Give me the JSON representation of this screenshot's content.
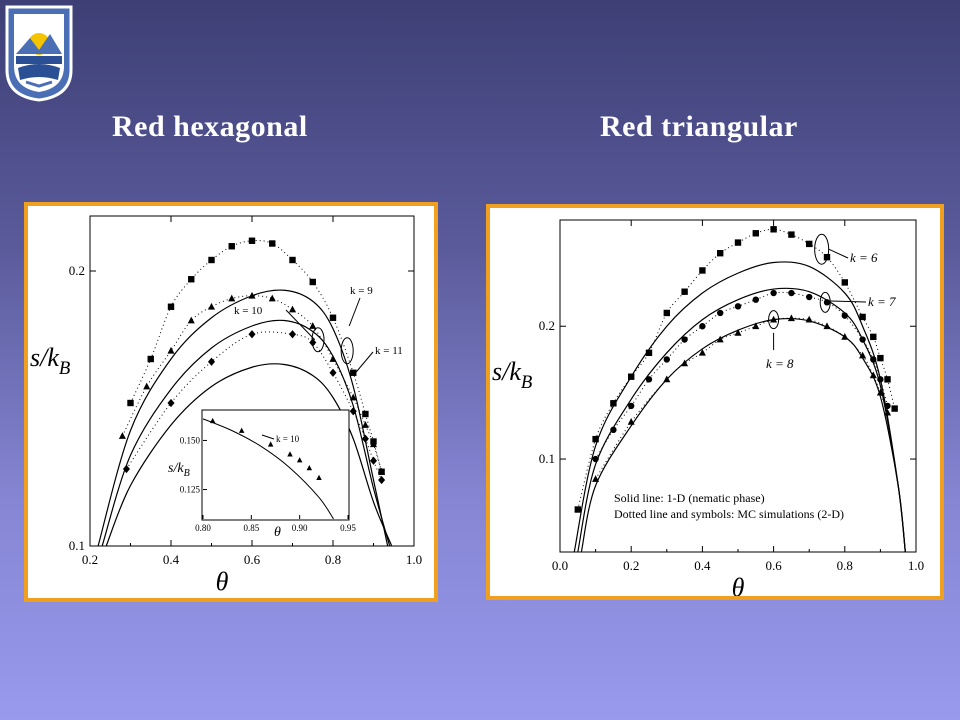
{
  "page": {
    "heading_left": "Red hexagonal",
    "heading_right": "Red triangular"
  },
  "logo": {
    "icon": "university-shield-icon",
    "colors": [
      "#4a6fb5",
      "#ffffff",
      "#f5c400",
      "#2a4f95"
    ]
  },
  "chart_data": [
    {
      "type": "scatter",
      "title": "",
      "xlabel": "θ",
      "ylabel": "s/k_B",
      "xlim": [
        0.2,
        1.0
      ],
      "ylim": [
        0.1,
        0.22
      ],
      "x_ticks": [
        "0.2",
        "0.4",
        "0.6",
        "0.8",
        "1.0"
      ],
      "y_ticks": [
        "0.1",
        "0.2"
      ],
      "annotations": [
        "k = 9",
        "k = 10",
        "k = 11"
      ],
      "series": [
        {
          "name": "k = 9",
          "marker": "square",
          "line": "dotted",
          "x": [
            0.3,
            0.35,
            0.4,
            0.45,
            0.5,
            0.55,
            0.6,
            0.65,
            0.7,
            0.75,
            0.8,
            0.85,
            0.88,
            0.9,
            0.92
          ],
          "y": [
            0.152,
            0.168,
            0.187,
            0.197,
            0.204,
            0.209,
            0.211,
            0.21,
            0.204,
            0.196,
            0.183,
            0.163,
            0.148,
            0.138,
            0.127
          ]
        },
        {
          "name": "k = 10",
          "marker": "triangle",
          "line": "dotted",
          "x": [
            0.28,
            0.34,
            0.4,
            0.45,
            0.5,
            0.55,
            0.6,
            0.65,
            0.7,
            0.75,
            0.8,
            0.85,
            0.88,
            0.9,
            0.92
          ],
          "y": [
            0.14,
            0.158,
            0.171,
            0.182,
            0.187,
            0.19,
            0.191,
            0.19,
            0.186,
            0.18,
            0.168,
            0.154,
            0.144,
            0.137,
            0.127
          ]
        },
        {
          "name": "k = 11",
          "marker": "diamond",
          "line": "dotted",
          "x": [
            0.29,
            0.4,
            0.5,
            0.6,
            0.7,
            0.75,
            0.8,
            0.85,
            0.88,
            0.9,
            0.92
          ],
          "y": [
            0.128,
            0.152,
            0.167,
            0.177,
            0.177,
            0.174,
            0.163,
            0.149,
            0.139,
            0.131,
            0.124
          ]
        },
        {
          "name": "k = 9 (1-D)",
          "marker": "none",
          "line": "solid",
          "x": [
            0.22,
            0.3,
            0.4,
            0.5,
            0.6,
            0.68,
            0.75,
            0.8,
            0.85,
            0.9,
            0.935
          ],
          "y": [
            0.1,
            0.142,
            0.168,
            0.183,
            0.191,
            0.193,
            0.189,
            0.179,
            0.158,
            0.124,
            0.1
          ]
        },
        {
          "name": "k = 10 (1-D)",
          "marker": "none",
          "line": "solid",
          "x": [
            0.23,
            0.3,
            0.4,
            0.5,
            0.6,
            0.68,
            0.75,
            0.8,
            0.85,
            0.9,
            0.94
          ],
          "y": [
            0.1,
            0.133,
            0.157,
            0.172,
            0.18,
            0.182,
            0.178,
            0.169,
            0.151,
            0.121,
            0.1
          ]
        },
        {
          "name": "k = 11 (1-D)",
          "marker": "none",
          "line": "solid",
          "x": [
            0.24,
            0.3,
            0.4,
            0.5,
            0.6,
            0.68,
            0.75,
            0.8,
            0.85,
            0.9,
            0.945
          ],
          "y": [
            0.1,
            0.122,
            0.144,
            0.158,
            0.165,
            0.166,
            0.162,
            0.154,
            0.139,
            0.116,
            0.1
          ]
        }
      ],
      "inset": {
        "xlabel": "θ",
        "ylabel": "s/k_B",
        "xlim": [
          0.8,
          0.95
        ],
        "ylim": [
          0.11,
          0.165
        ],
        "x_ticks": [
          "0.80",
          "0.85",
          "0.90",
          "0.95"
        ],
        "y_ticks": [
          "0.125",
          "0.150"
        ],
        "annotation": "k = 10",
        "points_x": [
          0.81,
          0.84,
          0.87,
          0.89,
          0.9,
          0.91,
          0.92
        ],
        "points_y": [
          0.16,
          0.155,
          0.148,
          0.143,
          0.14,
          0.136,
          0.131
        ],
        "curve_x": [
          0.8,
          0.83,
          0.86,
          0.89,
          0.92,
          0.935
        ],
        "curve_y": [
          0.161,
          0.155,
          0.147,
          0.136,
          0.121,
          0.11
        ]
      }
    },
    {
      "type": "scatter",
      "title": "",
      "xlabel": "θ",
      "ylabel": "s/k_B",
      "xlim": [
        0.0,
        1.0
      ],
      "ylim": [
        0.03,
        0.28
      ],
      "x_ticks": [
        "0.0",
        "0.2",
        "0.4",
        "0.6",
        "0.8",
        "1.0"
      ],
      "y_ticks": [
        "0.1",
        "0.2"
      ],
      "annotations": [
        "k = 6",
        "k = 7",
        "k = 8"
      ],
      "legend_text": [
        "Solid line: 1-D (nematic phase)",
        "Dotted line and symbols: MC simulations (2-D)"
      ],
      "series": [
        {
          "name": "k = 6",
          "marker": "square",
          "line": "dotted",
          "x": [
            0.05,
            0.1,
            0.15,
            0.2,
            0.25,
            0.3,
            0.35,
            0.4,
            0.45,
            0.5,
            0.55,
            0.6,
            0.65,
            0.7,
            0.75,
            0.8,
            0.85,
            0.88,
            0.9,
            0.92,
            0.94
          ],
          "y": [
            0.062,
            0.115,
            0.142,
            0.162,
            0.18,
            0.21,
            0.226,
            0.242,
            0.255,
            0.263,
            0.27,
            0.273,
            0.269,
            0.262,
            0.252,
            0.233,
            0.207,
            0.192,
            0.176,
            0.16,
            0.138
          ]
        },
        {
          "name": "k = 7",
          "marker": "circle",
          "line": "dotted",
          "x": [
            0.1,
            0.15,
            0.2,
            0.25,
            0.3,
            0.35,
            0.4,
            0.45,
            0.5,
            0.55,
            0.6,
            0.65,
            0.7,
            0.75,
            0.8,
            0.85,
            0.88,
            0.9,
            0.92
          ],
          "y": [
            0.1,
            0.122,
            0.14,
            0.16,
            0.175,
            0.19,
            0.2,
            0.21,
            0.215,
            0.22,
            0.225,
            0.225,
            0.222,
            0.218,
            0.208,
            0.19,
            0.175,
            0.16,
            0.14
          ]
        },
        {
          "name": "k = 8",
          "marker": "triangle",
          "line": "dotted",
          "x": [
            0.1,
            0.2,
            0.3,
            0.35,
            0.4,
            0.45,
            0.5,
            0.55,
            0.6,
            0.65,
            0.7,
            0.75,
            0.8,
            0.85,
            0.88,
            0.9,
            0.92
          ],
          "y": [
            0.085,
            0.128,
            0.16,
            0.172,
            0.18,
            0.19,
            0.195,
            0.2,
            0.205,
            0.206,
            0.205,
            0.2,
            0.192,
            0.178,
            0.163,
            0.15,
            0.135
          ]
        },
        {
          "name": "k = 6 (1-D)",
          "marker": "none",
          "line": "solid",
          "x": [
            0.04,
            0.1,
            0.2,
            0.3,
            0.4,
            0.5,
            0.6,
            0.7,
            0.8,
            0.85,
            0.9,
            0.95,
            0.97
          ],
          "y": [
            0.03,
            0.11,
            0.162,
            0.2,
            0.225,
            0.24,
            0.248,
            0.245,
            0.225,
            0.2,
            0.16,
            0.08,
            0.03
          ]
        },
        {
          "name": "k = 7 (1-D)",
          "marker": "none",
          "line": "solid",
          "x": [
            0.05,
            0.1,
            0.2,
            0.3,
            0.4,
            0.5,
            0.6,
            0.7,
            0.8,
            0.85,
            0.9,
            0.95,
            0.97
          ],
          "y": [
            0.03,
            0.096,
            0.145,
            0.18,
            0.205,
            0.22,
            0.228,
            0.226,
            0.21,
            0.19,
            0.155,
            0.08,
            0.03
          ]
        },
        {
          "name": "k = 8 (1-D)",
          "marker": "none",
          "line": "solid",
          "x": [
            0.06,
            0.1,
            0.2,
            0.3,
            0.4,
            0.5,
            0.6,
            0.7,
            0.8,
            0.85,
            0.9,
            0.95,
            0.97
          ],
          "y": [
            0.03,
            0.08,
            0.125,
            0.16,
            0.183,
            0.197,
            0.205,
            0.204,
            0.192,
            0.176,
            0.147,
            0.08,
            0.03
          ]
        }
      ]
    }
  ]
}
